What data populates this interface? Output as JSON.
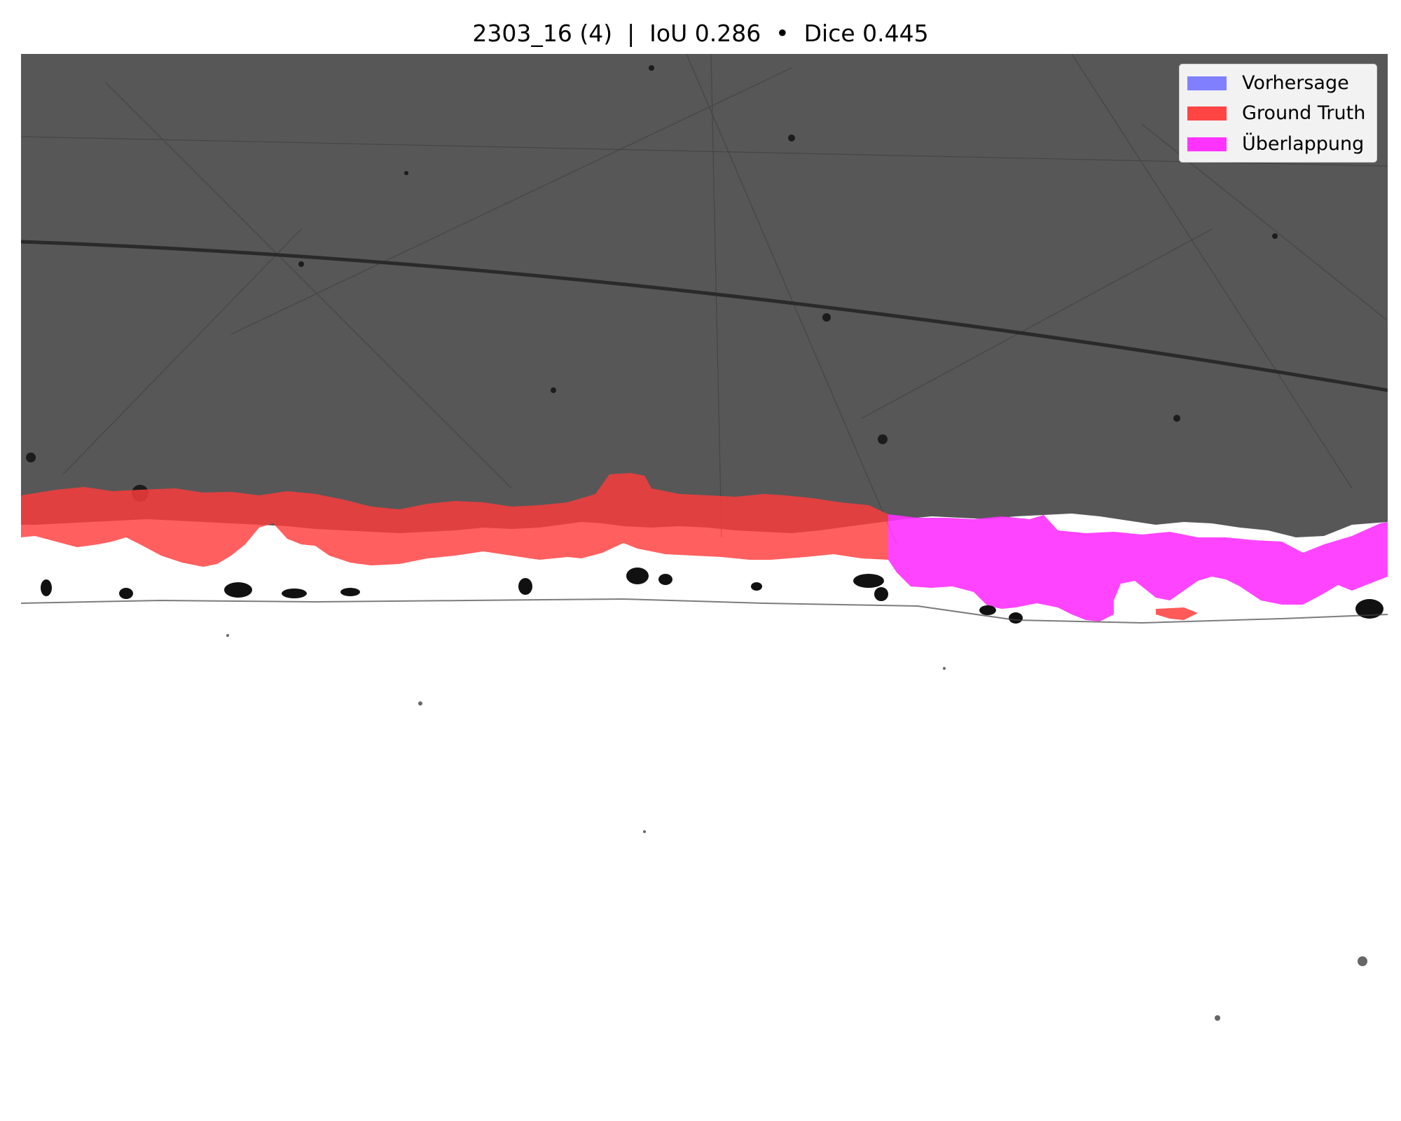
{
  "title": "2303_16 (4)  |  IoU 0.286  •  Dice 0.445",
  "legend": {
    "items": [
      {
        "label": "Vorhersage",
        "color": "#8080ff"
      },
      {
        "label": "Ground Truth",
        "color": "#ff4444"
      },
      {
        "label": "Überlappung",
        "color": "#ff33ff"
      }
    ]
  },
  "image": {
    "colors": {
      "upper_phase": "#575757",
      "lower_phase": "#ffffff",
      "scratch": "#3c3c3c",
      "ground_truth": "#ff3c3c",
      "overlap": "#ff30ff",
      "pores": "#111111"
    }
  }
}
